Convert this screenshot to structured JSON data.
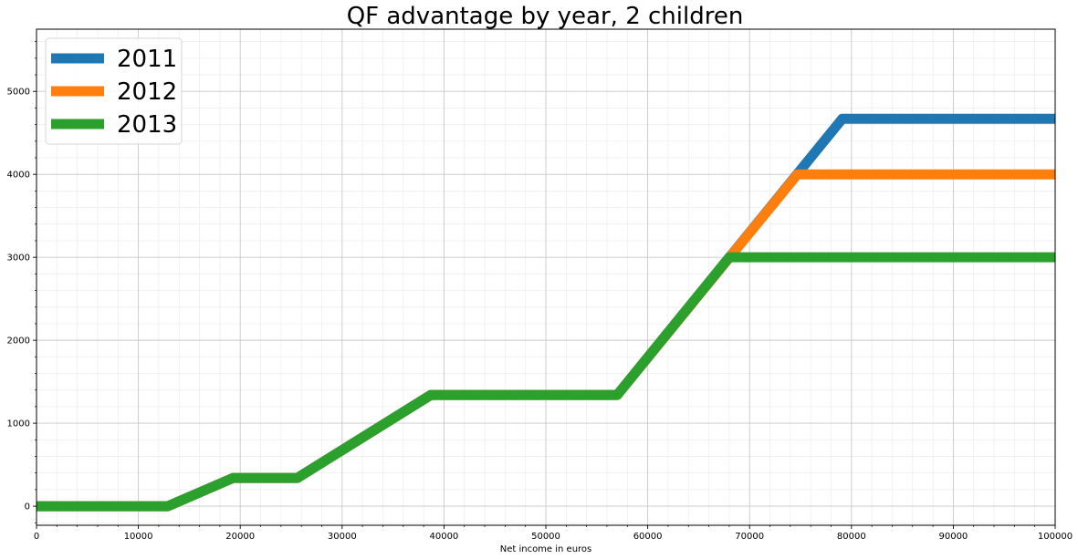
{
  "chart_data": {
    "type": "line",
    "title": "QF advantage by year, 2 children",
    "xlabel": "Net income in euros",
    "ylabel": "",
    "xlim": [
      0,
      100000
    ],
    "ylim": [
      -230,
      5750
    ],
    "x_ticks": [
      0,
      10000,
      20000,
      30000,
      40000,
      50000,
      60000,
      70000,
      80000,
      90000,
      100000
    ],
    "x_tick_labels": [
      "0",
      "10000",
      "20000",
      "30000",
      "40000",
      "50000",
      "60000",
      "70000",
      "80000",
      "90000",
      "100000"
    ],
    "y_ticks": [
      0,
      1000,
      2000,
      3000,
      4000,
      5000
    ],
    "y_tick_labels": [
      "0",
      "1000",
      "2000",
      "3000",
      "4000",
      "5000"
    ],
    "grid": true,
    "legend_position": "top-left",
    "series": [
      {
        "name": "2011",
        "color": "#1f77b4",
        "x": [
          0,
          12900,
          19300,
          25600,
          38700,
          57000,
          79100,
          100000
        ],
        "y": [
          0,
          0,
          340,
          340,
          1340,
          1340,
          4670,
          4670
        ]
      },
      {
        "name": "2012",
        "color": "#ff7f0e",
        "x": [
          0,
          12900,
          19300,
          25600,
          38700,
          57000,
          74700,
          100000
        ],
        "y": [
          0,
          0,
          340,
          340,
          1340,
          1340,
          4000,
          4000
        ]
      },
      {
        "name": "2013",
        "color": "#2ca02c",
        "x": [
          0,
          12900,
          19300,
          25600,
          38700,
          57000,
          68000,
          100000
        ],
        "y": [
          0,
          0,
          340,
          340,
          1340,
          1340,
          3000,
          3000
        ]
      }
    ]
  }
}
